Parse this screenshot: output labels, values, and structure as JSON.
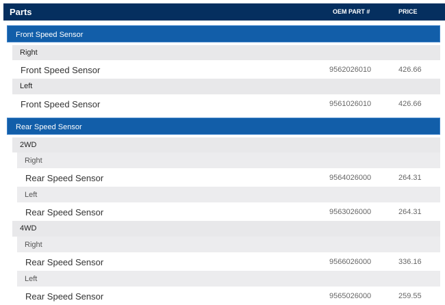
{
  "header": {
    "title": "Parts",
    "oem_col": "OEM PART #",
    "price_col": "PRICE"
  },
  "groups": [
    {
      "title": "Front Speed Sensor",
      "rows": [
        {
          "position": "Right",
          "name": "Front Speed Sensor",
          "oem": "9562026010",
          "price": "426.66"
        },
        {
          "position": "Left",
          "name": "Front Speed Sensor",
          "oem": "9561026010",
          "price": "426.66"
        }
      ]
    },
    {
      "title": "Rear Speed Sensor",
      "subgroups": [
        {
          "title": "2WD",
          "rows": [
            {
              "position": "Right",
              "name": "Rear Speed Sensor",
              "oem": "9564026000",
              "price": "264.31"
            },
            {
              "position": "Left",
              "name": "Rear Speed Sensor",
              "oem": "9563026000",
              "price": "264.31"
            }
          ]
        },
        {
          "title": "4WD",
          "rows": [
            {
              "position": "Right",
              "name": "Rear Speed Sensor",
              "oem": "9566026000",
              "price": "336.16"
            },
            {
              "position": "Left",
              "name": "Rear Speed Sensor",
              "oem": "9565026000",
              "price": "259.55"
            }
          ]
        }
      ]
    }
  ]
}
